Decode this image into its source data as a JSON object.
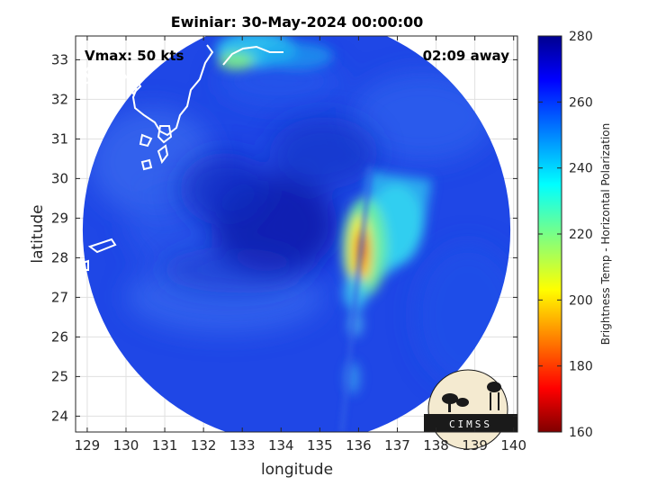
{
  "chart_data": {
    "type": "heatmap",
    "title": "Ewiniar: 30-May-2024 00:00:00",
    "xlabel": "longitude",
    "ylabel": "latitude",
    "xlim": [
      128.7,
      140.1
    ],
    "ylim": [
      23.6,
      33.6
    ],
    "xticks": [
      129,
      130,
      131,
      132,
      133,
      134,
      135,
      136,
      137,
      138,
      139,
      140
    ],
    "yticks": [
      24,
      25,
      26,
      27,
      28,
      29,
      30,
      31,
      32,
      33
    ],
    "grid": true,
    "annotations": {
      "vmax": "Vmax: 50 kts",
      "time_offset": "02:09 away"
    },
    "storm_center": {
      "lon": 134.2,
      "lat": 28.9
    },
    "swath": {
      "center_lon": 134.4,
      "center_lat": 28.7,
      "radius_deg": 5.6
    },
    "colorbar": {
      "label": "Brightness Temp - Horizontal Polarization",
      "min": 160,
      "max": 280,
      "ticks": [
        160,
        180,
        200,
        220,
        240,
        260,
        280
      ],
      "colormap": "jet"
    },
    "features": [
      {
        "name": "rainband",
        "lon": 135.9,
        "lat": 28.1,
        "min_temp": 175
      },
      {
        "name": "north-coast",
        "lon": 133.2,
        "lat": 33.4,
        "min_temp": 235
      }
    ]
  },
  "logo": {
    "text": "CIMSS"
  },
  "colors": {
    "background": "#ffffff",
    "axes_line": "#262626",
    "grid": "#e0e0e0",
    "coast": "#ffffff"
  }
}
